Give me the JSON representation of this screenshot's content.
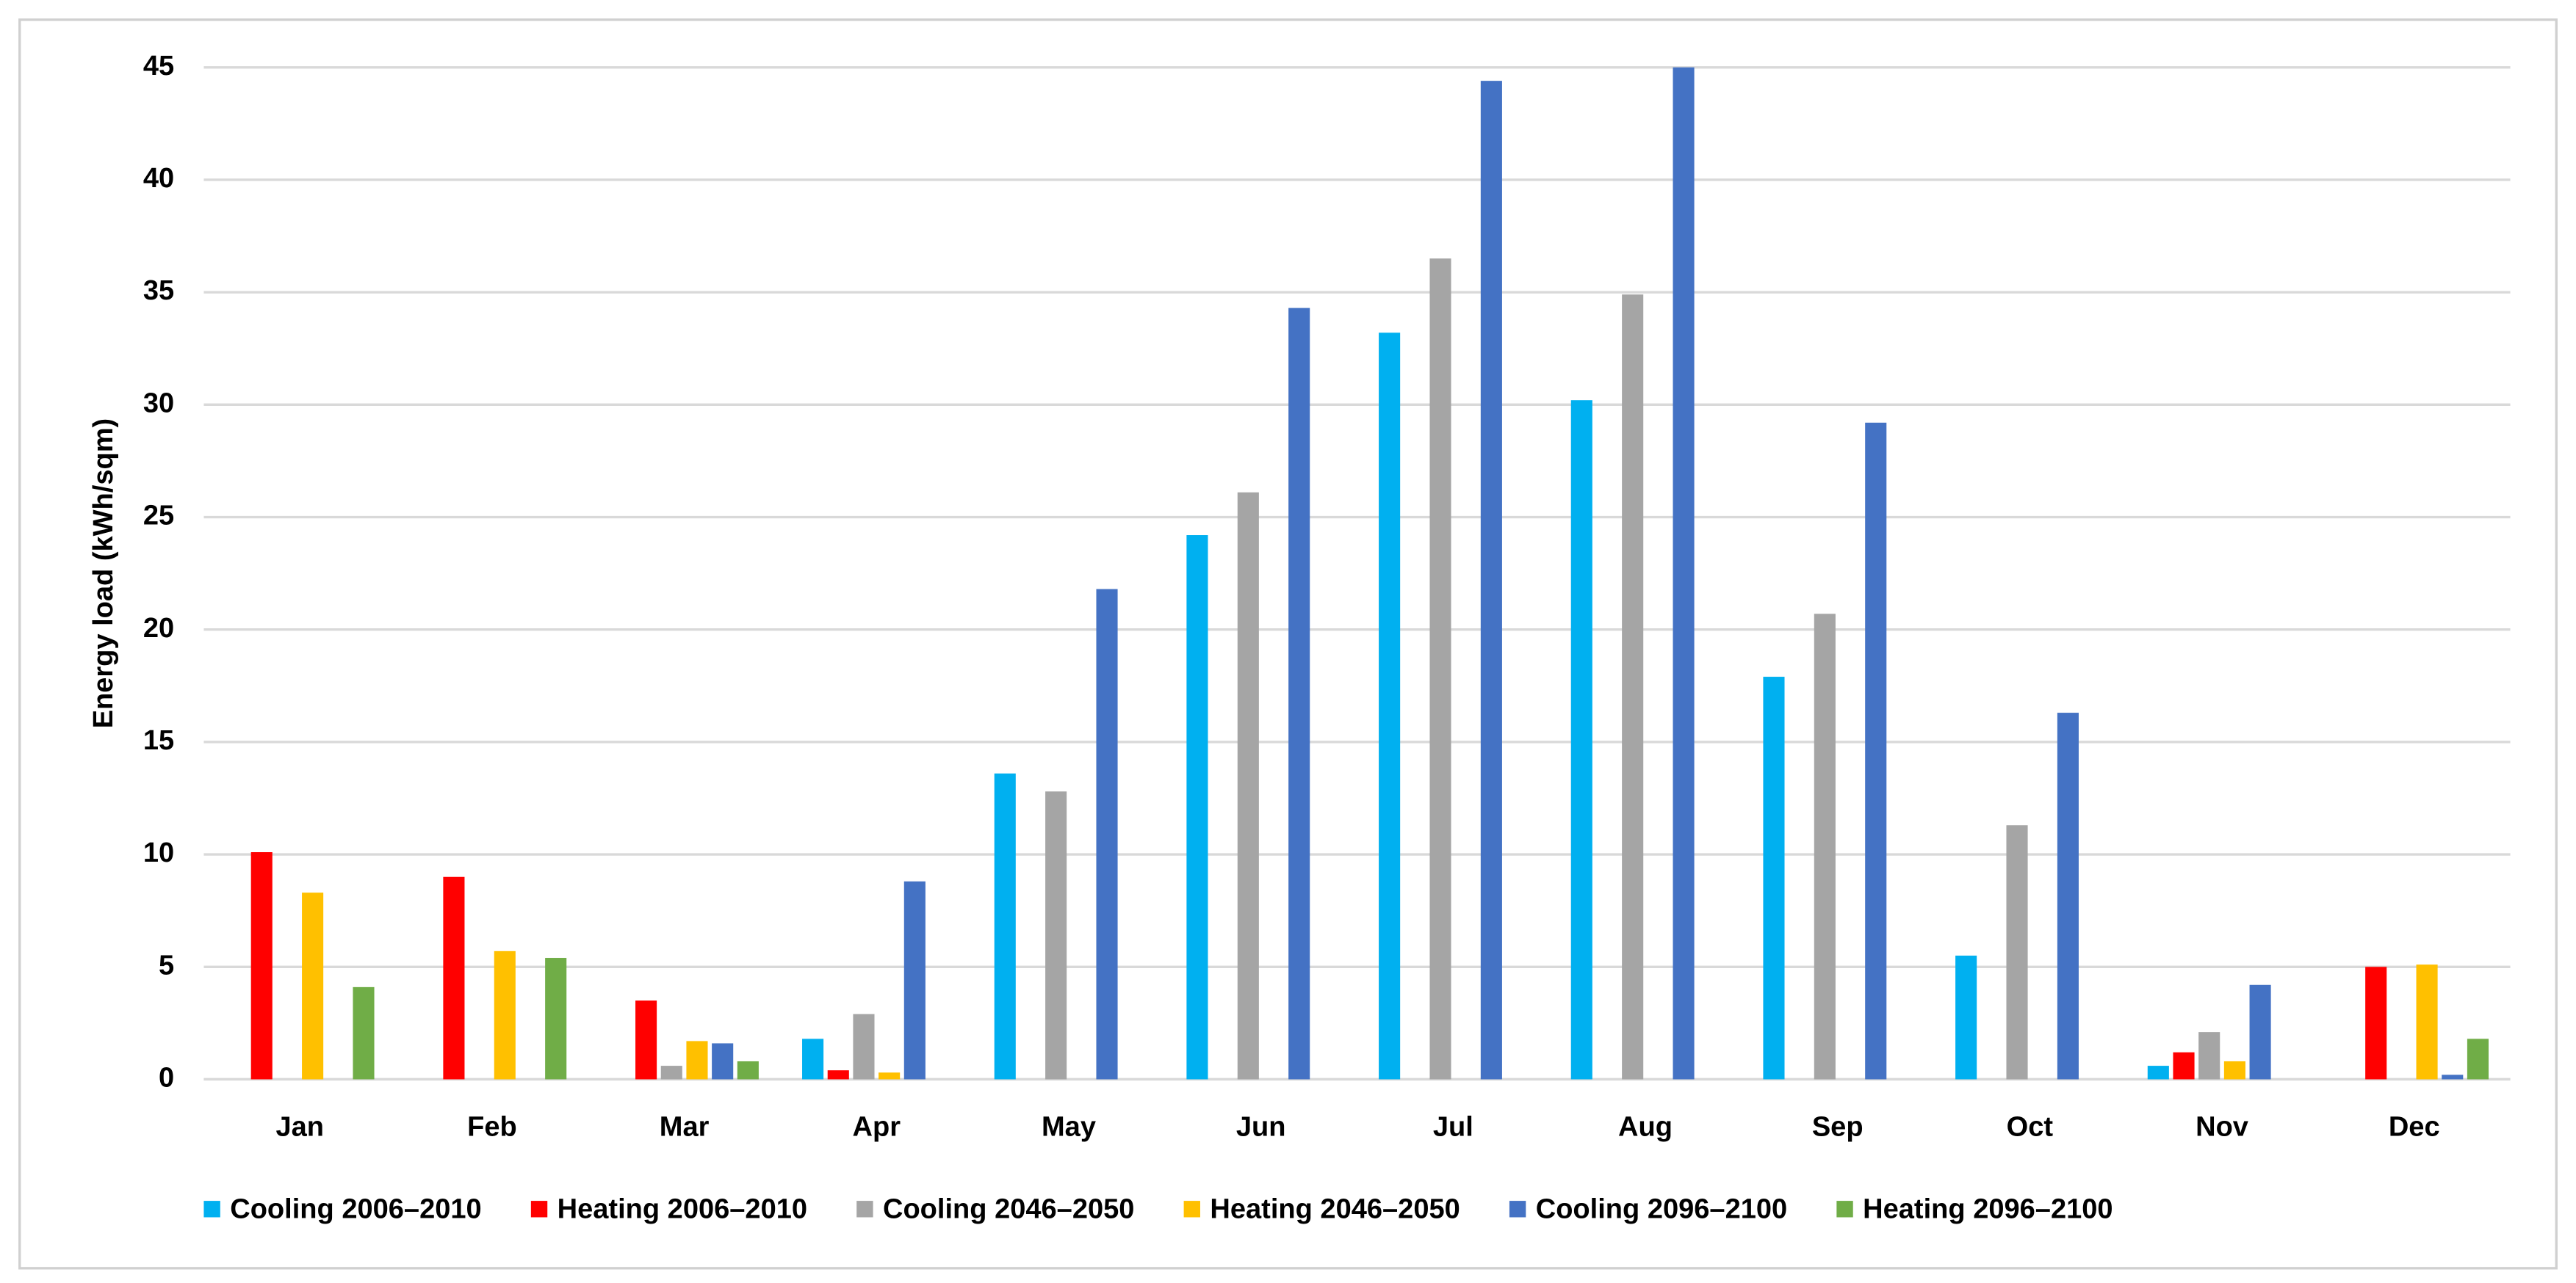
{
  "chart_data": {
    "type": "bar",
    "y_label": "Energy load (kWh/sqm)",
    "categories": [
      "Jan",
      "Feb",
      "Mar",
      "Apr",
      "May",
      "Jun",
      "Jul",
      "Aug",
      "Sep",
      "Oct",
      "Nov",
      "Dec"
    ],
    "series": [
      {
        "name": "Cooling 2006–2010",
        "color": "#00b0f0",
        "values": [
          0,
          0,
          0,
          1.8,
          13.6,
          24.2,
          33.2,
          30.2,
          17.9,
          5.5,
          0.6,
          0
        ]
      },
      {
        "name": "Heating 2006–2010",
        "color": "#ff0000",
        "values": [
          10.1,
          9.0,
          3.5,
          0.4,
          0,
          0,
          0,
          0,
          0,
          0,
          1.2,
          5.0
        ]
      },
      {
        "name": "Cooling 2046–2050",
        "color": "#a5a5a5",
        "values": [
          0,
          0,
          0.6,
          2.9,
          12.8,
          26.1,
          36.5,
          34.9,
          20.7,
          11.3,
          2.1,
          0
        ]
      },
      {
        "name": "Heating 2046–2050",
        "color": "#ffc000",
        "values": [
          8.3,
          5.7,
          1.7,
          0.3,
          0,
          0,
          0,
          0,
          0,
          0,
          0.8,
          5.1
        ]
      },
      {
        "name": "Cooling 2096–2100",
        "color": "#4472c4",
        "values": [
          0,
          0,
          1.6,
          8.8,
          21.8,
          34.3,
          44.4,
          45.0,
          29.2,
          16.3,
          4.2,
          0.2
        ]
      },
      {
        "name": "Heating 2096–2100",
        "color": "#70ad47",
        "values": [
          4.1,
          5.4,
          0.8,
          0,
          0,
          0,
          0,
          0,
          0,
          0,
          0,
          1.8
        ]
      }
    ],
    "ylim": [
      0,
      45
    ],
    "yticks": [
      0,
      5,
      10,
      15,
      20,
      25,
      30,
      35,
      40,
      45
    ],
    "grid": true,
    "legend": "bottom"
  }
}
